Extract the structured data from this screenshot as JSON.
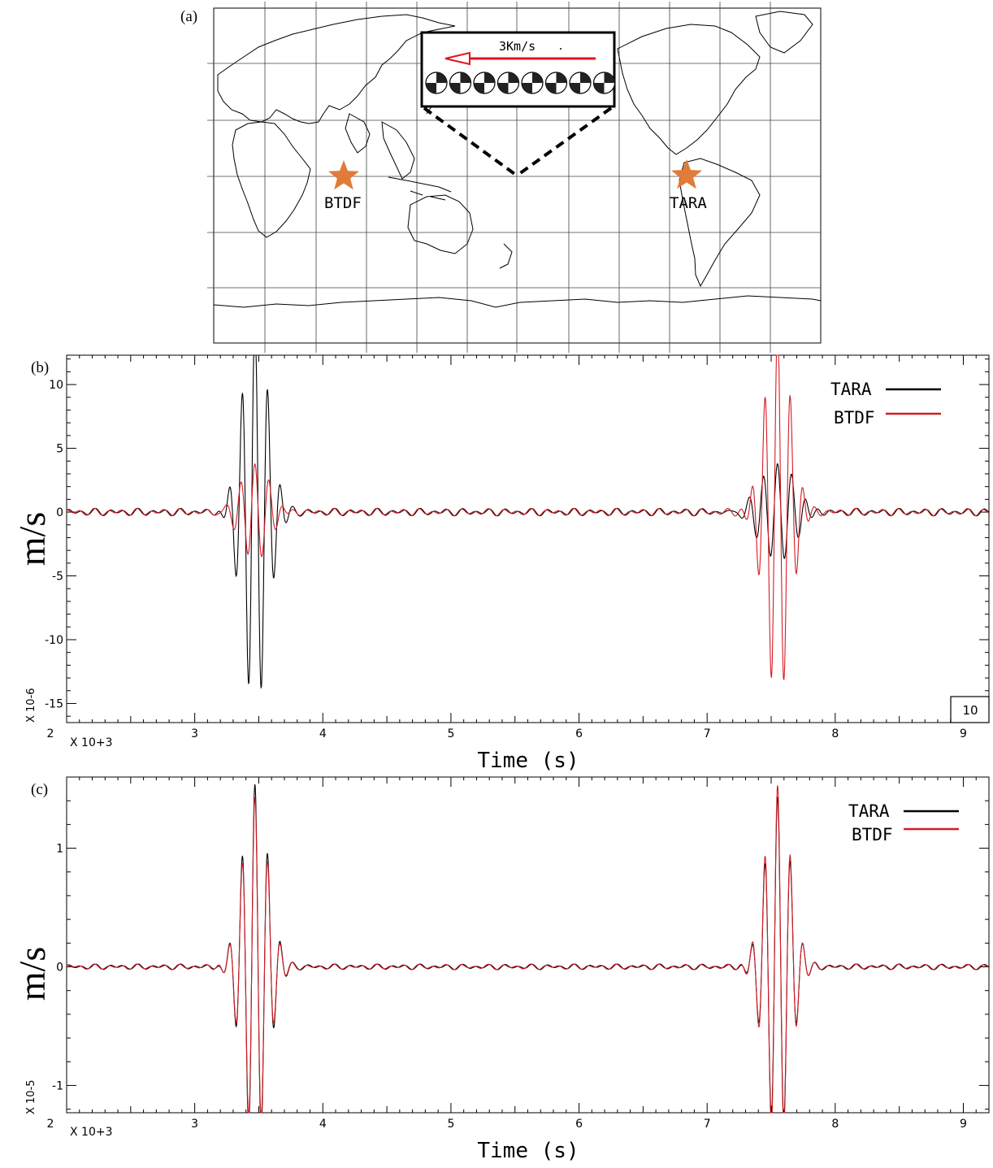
{
  "map": {
    "panel_label": "(a)",
    "inset_label": "3Km/s",
    "stations": [
      {
        "name": "BTDF",
        "color": "#e07b39"
      },
      {
        "name": "TARA",
        "color": "#e07b39"
      }
    ],
    "arrow_color": "#e0141e"
  },
  "chart_data": [
    {
      "type": "line",
      "panel_label": "(b)",
      "xlabel": "Time (s)",
      "ylabel": "m/s",
      "x_multiplier": "X 10+3",
      "y_multiplier": "X 10-6",
      "xlim": [
        2,
        9.2
      ],
      "ylim": [
        -16.5,
        12.3
      ],
      "xticks": [
        2,
        3,
        4,
        5,
        6,
        7,
        8,
        9
      ],
      "yticks": [
        -15,
        -10,
        -5,
        0,
        5,
        10
      ],
      "corner_box_label": "10",
      "legend_position": "top-right",
      "series": [
        {
          "name": "TARA",
          "color": "#000000",
          "packets": [
            {
              "center": 3.47,
              "amp": 15.5,
              "width": 0.14,
              "period": 0.1
            },
            {
              "center": 7.55,
              "amp": 4.0,
              "width": 0.2,
              "period": 0.11
            }
          ]
        },
        {
          "name": "BTDF",
          "color": "#d51c24",
          "packets": [
            {
              "center": 3.47,
              "amp": 4.0,
              "width": 0.16,
              "period": 0.11
            },
            {
              "center": 7.55,
              "amp": 15.0,
              "width": 0.14,
              "period": 0.1
            }
          ]
        }
      ]
    },
    {
      "type": "line",
      "panel_label": "(c)",
      "xlabel": "Time (s)",
      "ylabel": "m/s",
      "x_multiplier": "X 10+3",
      "y_multiplier": "X 10-5",
      "xlim": [
        2,
        9.2
      ],
      "ylim": [
        -1.23,
        1.6
      ],
      "xticks": [
        2,
        3,
        4,
        5,
        6,
        7,
        8,
        9
      ],
      "yticks": [
        -1,
        0,
        1
      ],
      "legend_position": "top-right",
      "series": [
        {
          "name": "TARA",
          "color": "#000000",
          "packets": [
            {
              "center": 3.47,
              "amp": 1.55,
              "width": 0.14,
              "period": 0.1
            },
            {
              "center": 7.55,
              "amp": 1.45,
              "width": 0.14,
              "period": 0.1
            }
          ]
        },
        {
          "name": "BTDF",
          "color": "#d51c24",
          "packets": [
            {
              "center": 3.47,
              "amp": 1.45,
              "width": 0.14,
              "period": 0.1
            },
            {
              "center": 7.55,
              "amp": 1.55,
              "width": 0.14,
              "period": 0.1
            }
          ]
        }
      ]
    }
  ]
}
